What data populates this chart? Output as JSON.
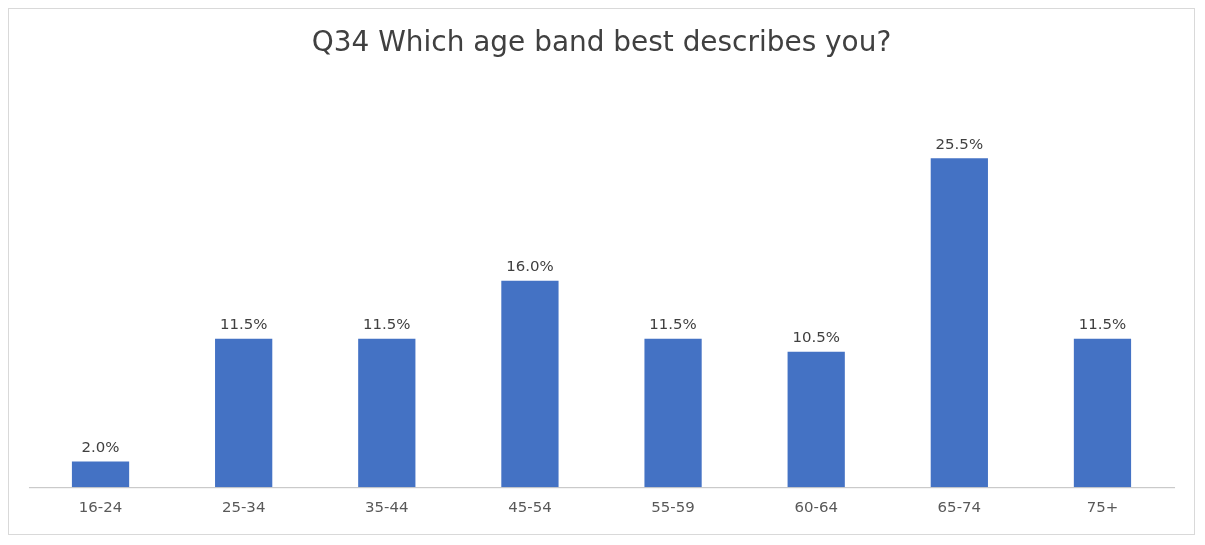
{
  "chart_data": {
    "type": "bar",
    "title": "Q34 Which age band best describes you?",
    "categories": [
      "16-24",
      "25-34",
      "35-44",
      "45-54",
      "55-59",
      "60-64",
      "65-74",
      "75+"
    ],
    "values": [
      2.0,
      11.5,
      11.5,
      16.0,
      11.5,
      10.5,
      25.5,
      11.5
    ],
    "value_labels": [
      "2.0%",
      "11.5%",
      "11.5%",
      "16.0%",
      "11.5%",
      "10.5%",
      "25.5%",
      "11.5%"
    ],
    "color": "#4472c4",
    "grid": false,
    "legend": false
  }
}
